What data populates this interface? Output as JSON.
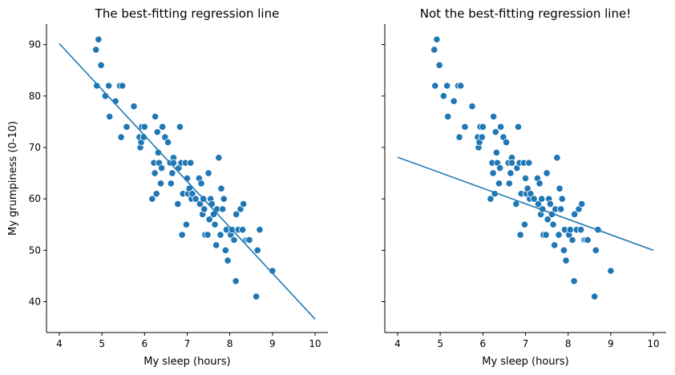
{
  "chart_data": [
    {
      "type": "scatter",
      "title": "The best-fitting regression line",
      "xlabel": "My sleep (hours)",
      "ylabel": "My grumpiness (0-10)",
      "xlim": [
        3.7,
        10.3
      ],
      "ylim": [
        34,
        94
      ],
      "xticks": [
        4,
        5,
        6,
        7,
        8,
        9,
        10
      ],
      "yticks": [
        40,
        50,
        60,
        70,
        80,
        90
      ],
      "grid": false,
      "point_color": "#1f77b4",
      "line_color": "#1f77b4",
      "points": [
        [
          4.86,
          89
        ],
        [
          4.92,
          91
        ],
        [
          4.98,
          86
        ],
        [
          4.88,
          82
        ],
        [
          5.08,
          80
        ],
        [
          5.16,
          82
        ],
        [
          5.18,
          76
        ],
        [
          5.32,
          79
        ],
        [
          5.42,
          82
        ],
        [
          5.48,
          82
        ],
        [
          5.45,
          72
        ],
        [
          5.58,
          74
        ],
        [
          5.75,
          78
        ],
        [
          5.88,
          72
        ],
        [
          5.9,
          70
        ],
        [
          5.92,
          71
        ],
        [
          5.94,
          74
        ],
        [
          5.98,
          72
        ],
        [
          6.0,
          74
        ],
        [
          6.18,
          60
        ],
        [
          6.22,
          67
        ],
        [
          6.24,
          65
        ],
        [
          6.25,
          76
        ],
        [
          6.28,
          61
        ],
        [
          6.3,
          73
        ],
        [
          6.32,
          69
        ],
        [
          6.34,
          67
        ],
        [
          6.38,
          63
        ],
        [
          6.4,
          66
        ],
        [
          6.42,
          74
        ],
        [
          6.48,
          72
        ],
        [
          6.55,
          71
        ],
        [
          6.6,
          67
        ],
        [
          6.62,
          63
        ],
        [
          6.65,
          65
        ],
        [
          6.68,
          68
        ],
        [
          6.68,
          67
        ],
        [
          6.78,
          59
        ],
        [
          6.8,
          66
        ],
        [
          6.83,
          74
        ],
        [
          6.86,
          67
        ],
        [
          6.88,
          53
        ],
        [
          6.9,
          61
        ],
        [
          6.96,
          67
        ],
        [
          6.98,
          55
        ],
        [
          7.0,
          64
        ],
        [
          7.02,
          61
        ],
        [
          7.05,
          62
        ],
        [
          7.08,
          67
        ],
        [
          7.1,
          60
        ],
        [
          7.12,
          61
        ],
        [
          7.2,
          60
        ],
        [
          7.28,
          64
        ],
        [
          7.3,
          59
        ],
        [
          7.33,
          63
        ],
        [
          7.36,
          57
        ],
        [
          7.38,
          60
        ],
        [
          7.4,
          58
        ],
        [
          7.42,
          53
        ],
        [
          7.48,
          53
        ],
        [
          7.5,
          65
        ],
        [
          7.52,
          56
        ],
        [
          7.55,
          60
        ],
        [
          7.58,
          59
        ],
        [
          7.62,
          57
        ],
        [
          7.65,
          55
        ],
        [
          7.68,
          51
        ],
        [
          7.7,
          58
        ],
        [
          7.74,
          68
        ],
        [
          7.78,
          53
        ],
        [
          7.8,
          62
        ],
        [
          7.83,
          58
        ],
        [
          7.86,
          60
        ],
        [
          7.9,
          50
        ],
        [
          7.92,
          54
        ],
        [
          7.95,
          48
        ],
        [
          8.02,
          53
        ],
        [
          8.05,
          54
        ],
        [
          8.1,
          52
        ],
        [
          8.14,
          44
        ],
        [
          8.15,
          57
        ],
        [
          8.2,
          54
        ],
        [
          8.25,
          58
        ],
        [
          8.3,
          54
        ],
        [
          8.32,
          59
        ],
        [
          8.38,
          52
        ],
        [
          8.42,
          52
        ],
        [
          8.46,
          52
        ],
        [
          8.62,
          41
        ],
        [
          8.65,
          50
        ],
        [
          8.7,
          54
        ],
        [
          9.0,
          46
        ]
      ],
      "regression_line": {
        "x": [
          4,
          10
        ],
        "y": [
          90.2,
          36.6
        ]
      }
    },
    {
      "type": "scatter",
      "title": "Not the best-fitting regression line!",
      "xlabel": "My sleep (hours)",
      "ylabel": "",
      "xlim": [
        3.7,
        10.3
      ],
      "ylim": [
        34,
        94
      ],
      "xticks": [
        4,
        5,
        6,
        7,
        8,
        9,
        10
      ],
      "yticks": [
        40,
        50,
        60,
        70,
        80,
        90
      ],
      "ytick_labels_shown": false,
      "grid": false,
      "point_color": "#1f77b4",
      "line_color": "#1f77b4",
      "points": [
        [
          4.86,
          89
        ],
        [
          4.92,
          91
        ],
        [
          4.98,
          86
        ],
        [
          4.88,
          82
        ],
        [
          5.08,
          80
        ],
        [
          5.16,
          82
        ],
        [
          5.18,
          76
        ],
        [
          5.32,
          79
        ],
        [
          5.42,
          82
        ],
        [
          5.48,
          82
        ],
        [
          5.45,
          72
        ],
        [
          5.58,
          74
        ],
        [
          5.75,
          78
        ],
        [
          5.88,
          72
        ],
        [
          5.9,
          70
        ],
        [
          5.92,
          71
        ],
        [
          5.94,
          74
        ],
        [
          5.98,
          72
        ],
        [
          6.0,
          74
        ],
        [
          6.18,
          60
        ],
        [
          6.22,
          67
        ],
        [
          6.24,
          65
        ],
        [
          6.25,
          76
        ],
        [
          6.28,
          61
        ],
        [
          6.3,
          73
        ],
        [
          6.32,
          69
        ],
        [
          6.34,
          67
        ],
        [
          6.38,
          63
        ],
        [
          6.4,
          66
        ],
        [
          6.42,
          74
        ],
        [
          6.48,
          72
        ],
        [
          6.55,
          71
        ],
        [
          6.6,
          67
        ],
        [
          6.62,
          63
        ],
        [
          6.65,
          65
        ],
        [
          6.68,
          68
        ],
        [
          6.68,
          67
        ],
        [
          6.78,
          59
        ],
        [
          6.8,
          66
        ],
        [
          6.83,
          74
        ],
        [
          6.86,
          67
        ],
        [
          6.88,
          53
        ],
        [
          6.9,
          61
        ],
        [
          6.96,
          67
        ],
        [
          6.98,
          55
        ],
        [
          7.0,
          64
        ],
        [
          7.02,
          61
        ],
        [
          7.05,
          62
        ],
        [
          7.08,
          67
        ],
        [
          7.1,
          60
        ],
        [
          7.12,
          61
        ],
        [
          7.2,
          60
        ],
        [
          7.28,
          64
        ],
        [
          7.3,
          59
        ],
        [
          7.33,
          63
        ],
        [
          7.36,
          57
        ],
        [
          7.38,
          60
        ],
        [
          7.4,
          58
        ],
        [
          7.42,
          53
        ],
        [
          7.48,
          53
        ],
        [
          7.5,
          65
        ],
        [
          7.52,
          56
        ],
        [
          7.55,
          60
        ],
        [
          7.58,
          59
        ],
        [
          7.62,
          57
        ],
        [
          7.65,
          55
        ],
        [
          7.68,
          51
        ],
        [
          7.7,
          58
        ],
        [
          7.74,
          68
        ],
        [
          7.78,
          53
        ],
        [
          7.8,
          62
        ],
        [
          7.83,
          58
        ],
        [
          7.86,
          60
        ],
        [
          7.9,
          50
        ],
        [
          7.92,
          54
        ],
        [
          7.95,
          48
        ],
        [
          8.02,
          53
        ],
        [
          8.05,
          54
        ],
        [
          8.1,
          52
        ],
        [
          8.14,
          44
        ],
        [
          8.15,
          57
        ],
        [
          8.2,
          54
        ],
        [
          8.25,
          58
        ],
        [
          8.3,
          54
        ],
        [
          8.32,
          59
        ],
        [
          8.38,
          52
        ],
        [
          8.42,
          52
        ],
        [
          8.46,
          52
        ],
        [
          8.62,
          41
        ],
        [
          8.65,
          50
        ],
        [
          8.7,
          54
        ],
        [
          9.0,
          46
        ]
      ],
      "regression_line": {
        "x": [
          4,
          10
        ],
        "y": [
          68.1,
          50.0
        ]
      }
    }
  ]
}
